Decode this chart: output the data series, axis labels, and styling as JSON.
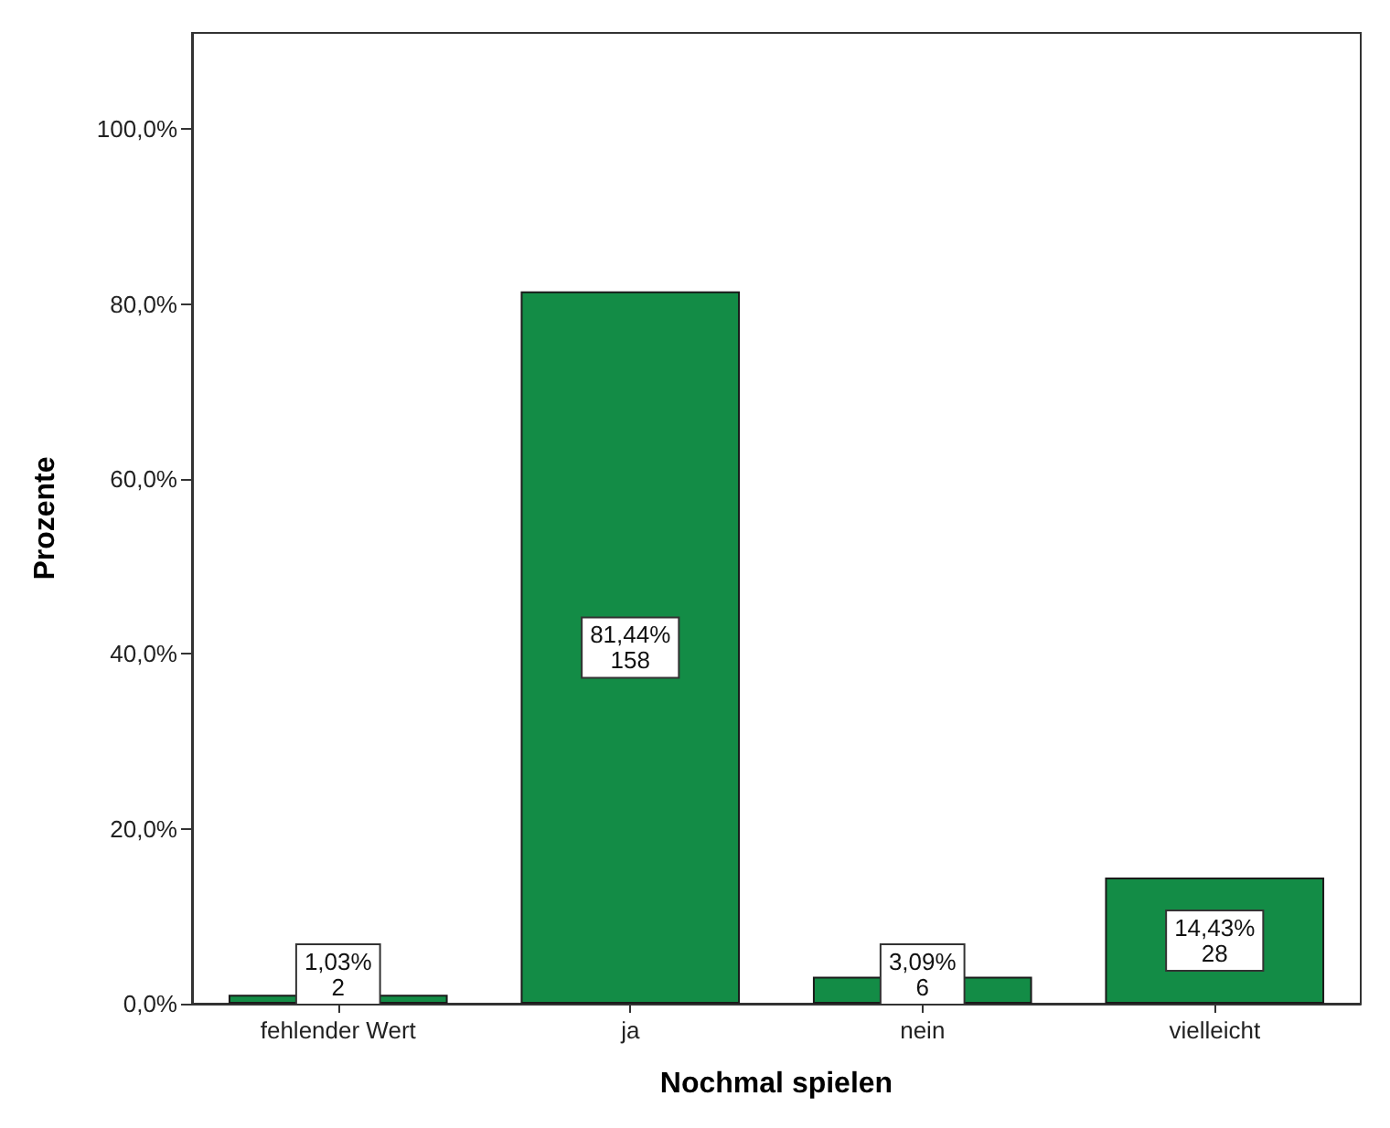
{
  "chart_data": {
    "type": "bar",
    "xlabel": "Nochmal spielen",
    "ylabel": "Prozente",
    "categories": [
      "fehlender Wert",
      "ja",
      "nein",
      "vielleicht"
    ],
    "values": [
      1.03,
      81.44,
      3.09,
      14.43
    ],
    "value_labels": [
      "1,03%\n2",
      "81,44%\n158",
      "3,09%\n6",
      "14,43%\n28"
    ],
    "color": "#138c46",
    "ylim": [
      0,
      111
    ],
    "yticks": [
      {
        "value": 0,
        "label": "0,0%"
      },
      {
        "value": 20,
        "label": "20,0%"
      },
      {
        "value": 40,
        "label": "40,0%"
      },
      {
        "value": 60,
        "label": "60,0%"
      },
      {
        "value": 80,
        "label": "80,0%"
      },
      {
        "value": 100,
        "label": "100,0%"
      }
    ],
    "grid": false
  }
}
